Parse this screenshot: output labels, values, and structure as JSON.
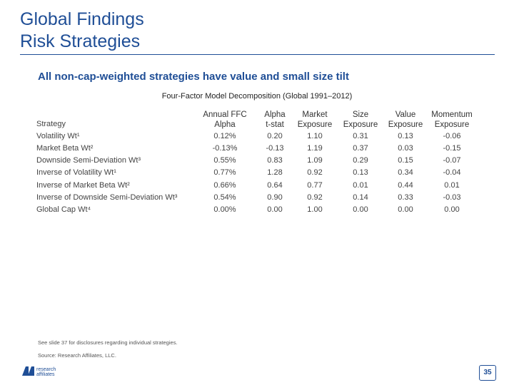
{
  "title_lines": [
    "Global Findings",
    "Risk Strategies"
  ],
  "subtitle": "All non-cap-weighted strategies have value and small size tilt",
  "table": {
    "caption": "Four-Factor Model Decomposition (Global 1991–2012)",
    "strategy_header": "Strategy",
    "columns": [
      {
        "line1": "Annual FFC",
        "line2": "Alpha"
      },
      {
        "line1": "Alpha",
        "line2": "t-stat"
      },
      {
        "line1": "Market",
        "line2": "Exposure"
      },
      {
        "line1": "Size",
        "line2": "Exposure"
      },
      {
        "line1": "Value",
        "line2": "Exposure"
      },
      {
        "line1": "Momentum",
        "line2": "Exposure"
      }
    ],
    "rows": [
      {
        "name": "Volatility Wt¹",
        "values": [
          "0.12%",
          "0.20",
          "1.10",
          "0.31",
          "0.13",
          "-0.06"
        ]
      },
      {
        "name": "Market Beta Wt²",
        "values": [
          "-0.13%",
          "-0.13",
          "1.19",
          "0.37",
          "0.03",
          "-0.15"
        ]
      },
      {
        "name": "Downside Semi-Deviation Wt³",
        "values": [
          "0.55%",
          "0.83",
          "1.09",
          "0.29",
          "0.15",
          "-0.07"
        ]
      },
      {
        "name": "Inverse of Volatility Wt¹",
        "values": [
          "0.77%",
          "1.28",
          "0.92",
          "0.13",
          "0.34",
          "-0.04"
        ]
      },
      {
        "name": "Inverse of Market Beta Wt²",
        "values": [
          "0.66%",
          "0.64",
          "0.77",
          "0.01",
          "0.44",
          "0.01"
        ]
      },
      {
        "name": "Inverse of  Downside Semi-Deviation Wt³",
        "values": [
          "0.54%",
          "0.90",
          "0.92",
          "0.14",
          "0.33",
          "-0.03"
        ]
      },
      {
        "name": "Global Cap Wt⁴",
        "values": [
          "0.00%",
          "0.00",
          "1.00",
          "0.00",
          "0.00",
          "0.00"
        ]
      }
    ]
  },
  "footer": {
    "note": "See slide 37 for disclosures regarding individual strategies.",
    "source": "Source: Research Affiliates, LLC."
  },
  "logo": {
    "line1": "research",
    "line2": "affiliates"
  },
  "page_number": "35",
  "colors": {
    "brand_blue": "#1f4e96"
  }
}
